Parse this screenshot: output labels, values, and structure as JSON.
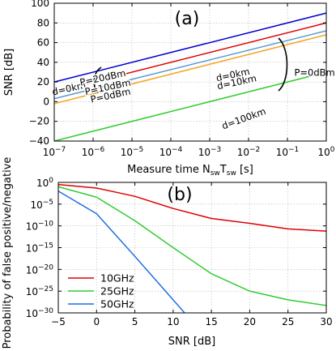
{
  "chart_data": [
    {
      "panel": "(a)",
      "type": "line",
      "xlabel_main": "Measure time N",
      "xlabel_sub1": "sw",
      "xlabel_mid": "T",
      "xlabel_sub2": "sw",
      "xlabel_end": " [s]",
      "ylabel": "SNR [dB]",
      "xscale": "log",
      "xlim_exp": [
        -7,
        0
      ],
      "ylim": [
        -40,
        100
      ],
      "xticks_exp": [
        -7,
        -6,
        -5,
        -4,
        -3,
        -2,
        -1,
        0
      ],
      "xtick_base": "10",
      "yticks": [
        -40,
        -20,
        0,
        20,
        40,
        60,
        80,
        100
      ],
      "grid": true,
      "series": [
        {
          "color": "#0000cc",
          "x_exp": [
            -7,
            0
          ],
          "y": [
            20,
            90
          ]
        },
        {
          "color": "#e00000",
          "x_exp": [
            -7,
            0
          ],
          "y": [
            10,
            80
          ]
        },
        {
          "color": "#5b9bd5",
          "x_exp": [
            -7,
            0
          ],
          "y": [
            3,
            72
          ]
        },
        {
          "color": "#f5a623",
          "x_exp": [
            -7,
            0
          ],
          "y": [
            -2,
            68
          ]
        },
        {
          "color": "#33cc33",
          "x_exp": [
            -7,
            0
          ],
          "y": [
            -40,
            30
          ]
        }
      ],
      "annotations": [
        {
          "text": "d=0km",
          "x_exp": -6.62,
          "y": 13,
          "angle": -12
        },
        {
          "text": "P=20dBm",
          "x_exp": -5.75,
          "y": 24,
          "angle": -12
        },
        {
          "text": "P=10dBm",
          "x_exp": -5.62,
          "y": 14.5,
          "angle": -12
        },
        {
          "text": "P=0dBm",
          "x_exp": -5.55,
          "y": 6,
          "angle": -12
        },
        {
          "text": "d=0km",
          "x_exp": -2.4,
          "y": 27,
          "angle": -12
        },
        {
          "text": "d=10km",
          "x_exp": -2.3,
          "y": 19.5,
          "angle": -12
        },
        {
          "text": "d=100km",
          "x_exp": -2.12,
          "y": -17.5,
          "angle": -20
        },
        {
          "text": "P=0dBm",
          "x_exp": -0.3,
          "y": 29,
          "angle": 0
        }
      ]
    },
    {
      "panel": "(b)",
      "type": "line",
      "xlabel": "SNR [dB]",
      "ylabel": "Probability of false positive/negative",
      "yscale": "log",
      "xlim": [
        -5,
        30
      ],
      "ylim_exp": [
        -30,
        0
      ],
      "xticks": [
        -5,
        0,
        5,
        10,
        15,
        20,
        25,
        30
      ],
      "yticks_exp": [
        -30,
        -25,
        -20,
        -15,
        -10,
        -5,
        0
      ],
      "ytick_base": "10",
      "grid": true,
      "legend_position": "bottom-left",
      "series": [
        {
          "name": "10GHz",
          "color": "#e00000",
          "x": [
            -5,
            0,
            5,
            10,
            15,
            20,
            25,
            30
          ],
          "y_exp": [
            -0.5,
            -1.3,
            -3.2,
            -6.0,
            -8.3,
            -9.4,
            -10.7,
            -11.2
          ]
        },
        {
          "name": "25GHz",
          "color": "#33cc33",
          "x": [
            -5,
            0,
            5,
            10,
            15,
            20,
            25,
            30
          ],
          "y_exp": [
            -1.0,
            -3.4,
            -8.8,
            -15.0,
            -21.0,
            -25.0,
            -27.0,
            -28.3
          ]
        },
        {
          "name": "50GHz",
          "color": "#1f6fe6",
          "x": [
            -5,
            0,
            5,
            10,
            11.5
          ],
          "y_exp": [
            -2.0,
            -7.2,
            -17.0,
            -27.0,
            -30.0
          ]
        }
      ]
    }
  ]
}
